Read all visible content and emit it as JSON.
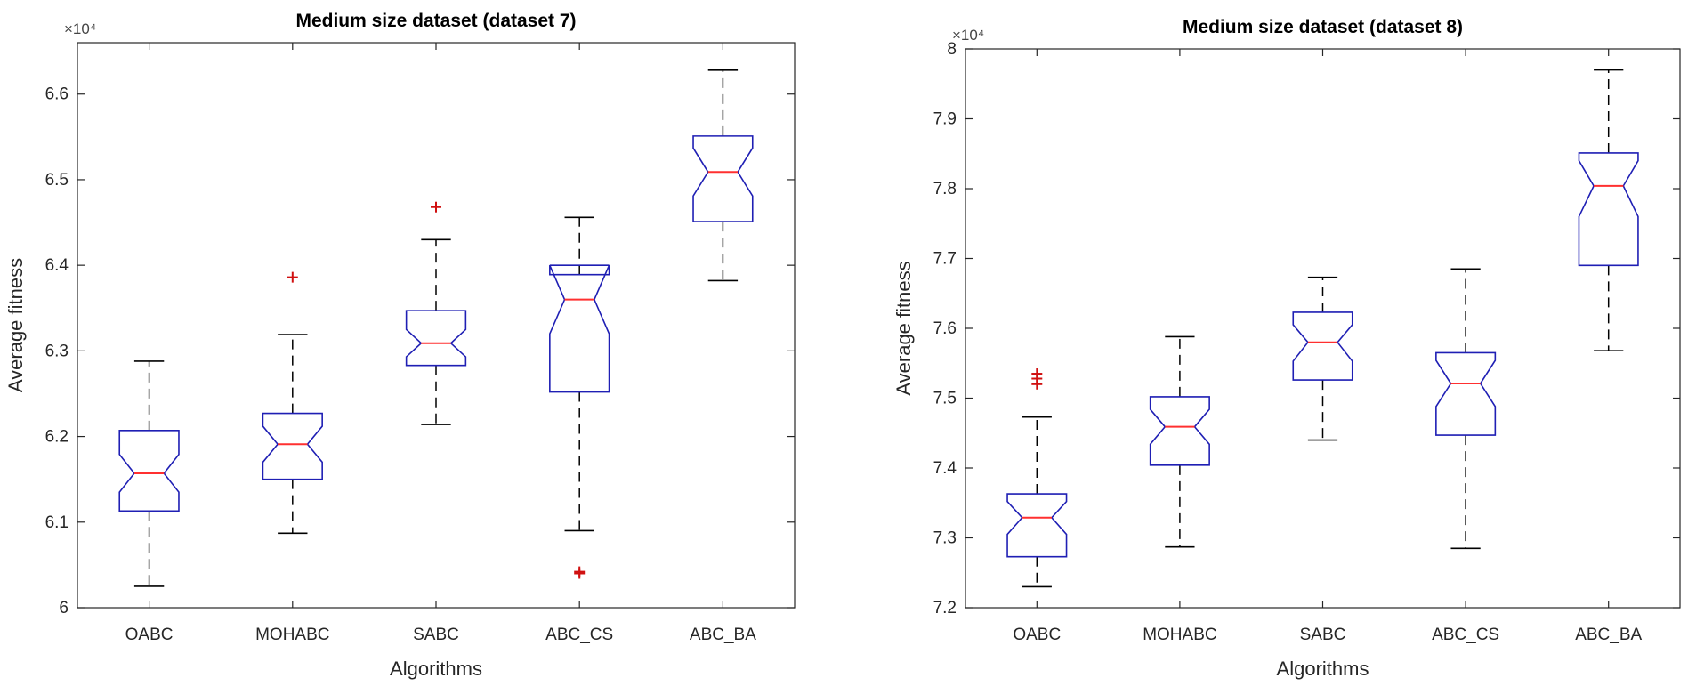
{
  "chart_data": [
    {
      "type": "boxplot",
      "title": "Medium size dataset (dataset 7)",
      "xlabel": "Algorithms",
      "ylabel": "Average fitness",
      "exponent_label": "×10⁴",
      "categories": [
        "OABC",
        "MOHABC",
        "SABC",
        "ABC_CS",
        "ABC_BA"
      ],
      "ylim": [
        6.0,
        6.66
      ],
      "yticks": [
        6,
        6.1,
        6.2,
        6.3,
        6.4,
        6.5,
        6.6
      ],
      "ytick_labels": [
        "6",
        "6.1",
        "6.2",
        "6.3",
        "6.4",
        "6.5",
        "6.6"
      ],
      "notched": true,
      "boxes": [
        {
          "name": "OABC",
          "min": 6.025,
          "q1": 6.113,
          "median": 6.157,
          "q3": 6.207,
          "max": 6.288,
          "notch_low": 6.135,
          "notch_high": 6.179,
          "outliers": []
        },
        {
          "name": "MOHABC",
          "min": 6.087,
          "q1": 6.15,
          "median": 6.191,
          "q3": 6.227,
          "max": 6.319,
          "notch_low": 6.17,
          "notch_high": 6.212,
          "outliers": [
            6.386
          ]
        },
        {
          "name": "SABC",
          "min": 6.214,
          "q1": 6.283,
          "median": 6.309,
          "q3": 6.347,
          "max": 6.43,
          "notch_low": 6.293,
          "notch_high": 6.325,
          "outliers": [
            6.468
          ]
        },
        {
          "name": "ABC_CS",
          "min": 6.09,
          "q1": 6.252,
          "median": 6.36,
          "q3": 6.389,
          "max": 6.456,
          "notch_low": 6.32,
          "notch_high": 6.4,
          "outliers": [
            6.042,
            6.04
          ]
        },
        {
          "name": "ABC_BA",
          "min": 6.382,
          "q1": 6.451,
          "median": 6.509,
          "q3": 6.551,
          "max": 6.628,
          "notch_low": 6.481,
          "notch_high": 6.537,
          "outliers": []
        }
      ]
    },
    {
      "type": "boxplot",
      "title": "Medium size dataset (dataset 8)",
      "xlabel": "Algorithms",
      "ylabel": "Average fitness",
      "exponent_label": "×10⁴",
      "categories": [
        "OABC",
        "MOHABC",
        "SABC",
        "ABC_CS",
        "ABC_BA"
      ],
      "ylim": [
        7.2,
        8.0
      ],
      "yticks": [
        7.2,
        7.3,
        7.4,
        7.5,
        7.6,
        7.7,
        7.8,
        7.9,
        8.0
      ],
      "ytick_labels": [
        "7.2",
        "7.3",
        "7.4",
        "7.5",
        "7.6",
        "7.7",
        "7.8",
        "7.9",
        "8"
      ],
      "notched": true,
      "boxes": [
        {
          "name": "OABC",
          "min": 7.23,
          "q1": 7.273,
          "median": 7.329,
          "q3": 7.363,
          "max": 7.473,
          "notch_low": 7.305,
          "notch_high": 7.352,
          "outliers": [
            7.535,
            7.528,
            7.52
          ]
        },
        {
          "name": "MOHABC",
          "min": 7.287,
          "q1": 7.404,
          "median": 7.459,
          "q3": 7.502,
          "max": 7.588,
          "notch_low": 7.434,
          "notch_high": 7.484,
          "outliers": []
        },
        {
          "name": "SABC",
          "min": 7.44,
          "q1": 7.526,
          "median": 7.58,
          "q3": 7.623,
          "max": 7.673,
          "notch_low": 7.553,
          "notch_high": 7.605,
          "outliers": []
        },
        {
          "name": "ABC_CS",
          "min": 7.285,
          "q1": 7.447,
          "median": 7.521,
          "q3": 7.565,
          "max": 7.685,
          "notch_low": 7.488,
          "notch_high": 7.554,
          "outliers": []
        },
        {
          "name": "ABC_BA",
          "min": 7.568,
          "q1": 7.69,
          "median": 7.804,
          "q3": 7.851,
          "max": 7.97,
          "notch_low": 7.76,
          "notch_high": 7.84,
          "outliers": []
        }
      ]
    }
  ]
}
